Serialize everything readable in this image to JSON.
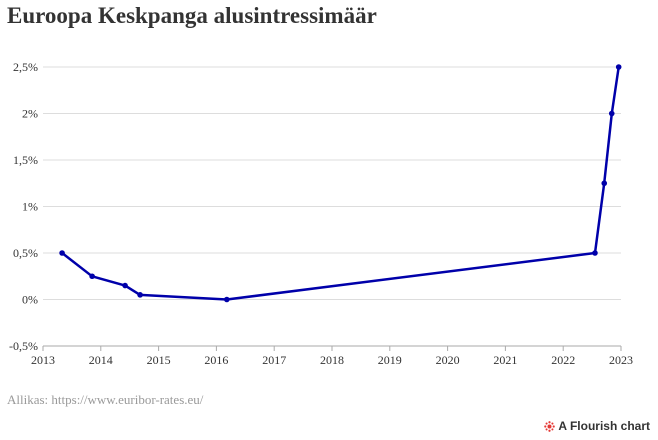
{
  "title": "Euroopa Keskpanga alusintressimäär",
  "source": "Allikas: https://www.euribor-rates.eu/",
  "brand": {
    "label": "A Flourish chart",
    "icon": "flourish-logo-icon",
    "icon_color": "#e53935"
  },
  "chart_data": {
    "type": "line",
    "title": "Euroopa Keskpanga alusintressimäär",
    "xlabel": "",
    "ylabel": "",
    "xlim": [
      2013,
      2023
    ],
    "ylim": [
      -0.5,
      2.5
    ],
    "x_ticks": [
      "2013",
      "2014",
      "2015",
      "2016",
      "2017",
      "2018",
      "2019",
      "2020",
      "2021",
      "2022",
      "2023"
    ],
    "y_ticks": [
      "2,5%",
      "2%",
      "1,5%",
      "1%",
      "0,5%",
      "0%",
      "-0,5%"
    ],
    "y_tick_values": [
      2.5,
      2,
      1.5,
      1,
      0.5,
      0,
      -0.5
    ],
    "grid": true,
    "line_color": "#0000aa",
    "series": [
      {
        "x": [
          2013.33,
          2013.85,
          2014.42,
          2014.68,
          2016.18,
          2022.55,
          2022.71,
          2022.84,
          2022.96
        ],
        "y": [
          0.5,
          0.25,
          0.15,
          0.05,
          0.0,
          0.5,
          1.25,
          2.0,
          2.5
        ]
      }
    ]
  }
}
